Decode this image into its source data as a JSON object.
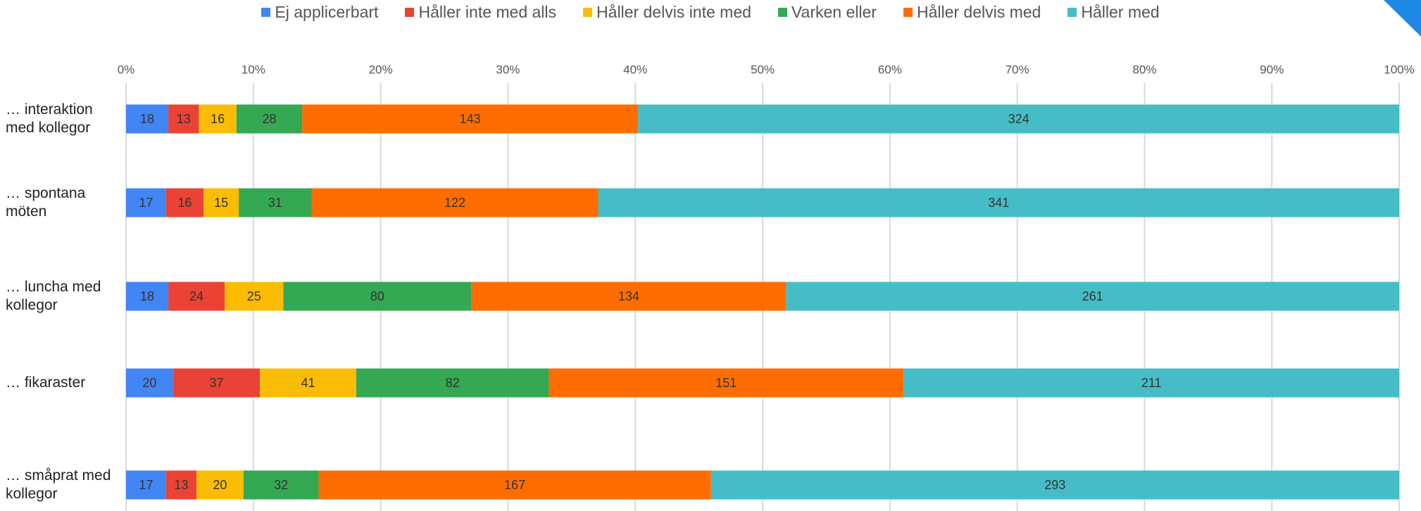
{
  "chart_data": {
    "type": "bar",
    "orientation": "horizontal",
    "stacked": "percent",
    "categories": [
      "… interaktion med kollegor",
      "… spontana möten",
      "… luncha med kollegor",
      "… fikaraster",
      "… småprat med kollegor"
    ],
    "series": [
      {
        "name": "Ej applicerbart",
        "color": "#4285f4",
        "values": [
          18,
          17,
          18,
          20,
          17
        ]
      },
      {
        "name": "Håller inte med alls",
        "color": "#ea4335",
        "values": [
          13,
          16,
          24,
          37,
          13
        ]
      },
      {
        "name": "Håller delvis inte med",
        "color": "#fbbc04",
        "values": [
          16,
          15,
          25,
          41,
          20
        ]
      },
      {
        "name": "Varken eller",
        "color": "#34a853",
        "values": [
          28,
          31,
          80,
          82,
          32
        ]
      },
      {
        "name": "Håller delvis med",
        "color": "#ff6d01",
        "values": [
          143,
          122,
          134,
          151,
          167
        ]
      },
      {
        "name": "Håller med",
        "color": "#46bdc6",
        "values": [
          324,
          341,
          261,
          211,
          293
        ]
      }
    ],
    "xlim": [
      0,
      100
    ],
    "xticks": [
      {
        "value": 0,
        "label": "0%"
      },
      {
        "value": 10,
        "label": "10%"
      },
      {
        "value": 20,
        "label": "20%"
      },
      {
        "value": 30,
        "label": "30%"
      },
      {
        "value": 40,
        "label": "40%"
      },
      {
        "value": 50,
        "label": "50%"
      },
      {
        "value": 60,
        "label": "60%"
      },
      {
        "value": 70,
        "label": "70%"
      },
      {
        "value": 80,
        "label": "80%"
      },
      {
        "value": 90,
        "label": "90%"
      },
      {
        "value": 100,
        "label": "100%"
      }
    ],
    "grid": true,
    "legend": "top"
  }
}
